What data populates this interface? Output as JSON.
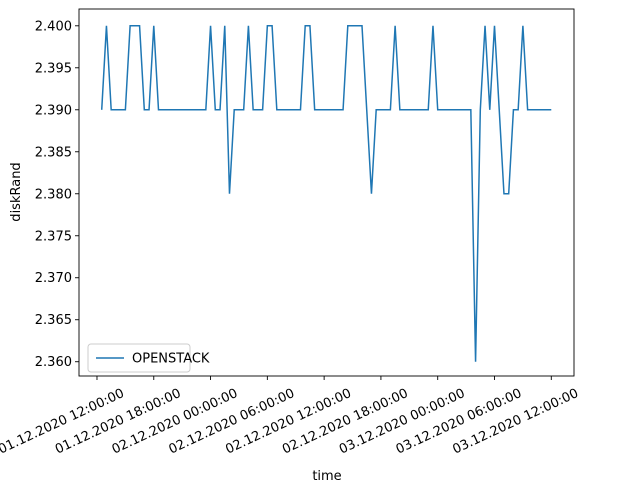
{
  "chart_data": {
    "type": "line",
    "xlabel": "time",
    "ylabel": "diskRand",
    "x": [
      "01.12.2020 12:30:00",
      "01.12.2020 13:00:00",
      "01.12.2020 13:30:00",
      "01.12.2020 15:00:00",
      "01.12.2020 15:30:00",
      "01.12.2020 16:30:00",
      "01.12.2020 17:00:00",
      "01.12.2020 17:30:00",
      "01.12.2020 18:00:00",
      "01.12.2020 18:30:00",
      "01.12.2020 23:30:00",
      "02.12.2020 00:00:00",
      "02.12.2020 00:30:00",
      "02.12.2020 01:00:00",
      "02.12.2020 01:30:00",
      "02.12.2020 02:00:00",
      "02.12.2020 02:30:00",
      "02.12.2020 03:30:00",
      "02.12.2020 04:00:00",
      "02.12.2020 04:30:00",
      "02.12.2020 05:30:00",
      "02.12.2020 06:00:00",
      "02.12.2020 06:30:00",
      "02.12.2020 07:00:00",
      "02.12.2020 09:30:00",
      "02.12.2020 10:00:00",
      "02.12.2020 10:30:00",
      "02.12.2020 11:00:00",
      "02.12.2020 14:00:00",
      "02.12.2020 14:30:00",
      "02.12.2020 16:00:00",
      "02.12.2020 16:30:00",
      "02.12.2020 17:00:00",
      "02.12.2020 17:30:00",
      "02.12.2020 19:00:00",
      "02.12.2020 19:30:00",
      "02.12.2020 20:00:00",
      "02.12.2020 23:00:00",
      "02.12.2020 23:30:00",
      "03.12.2020 00:00:00",
      "03.12.2020 03:30:00",
      "03.12.2020 04:00:00",
      "03.12.2020 04:30:00",
      "03.12.2020 05:00:00",
      "03.12.2020 05:30:00",
      "03.12.2020 06:00:00",
      "03.12.2020 06:30:00",
      "03.12.2020 07:00:00",
      "03.12.2020 07:30:00",
      "03.12.2020 08:00:00",
      "03.12.2020 08:30:00",
      "03.12.2020 09:00:00",
      "03.12.2020 09:30:00",
      "03.12.2020 12:00:00"
    ],
    "series": [
      {
        "name": "OPENSTACK",
        "color": "#1f77b4",
        "values": [
          2.39,
          2.4,
          2.39,
          2.39,
          2.4,
          2.4,
          2.39,
          2.39,
          2.4,
          2.39,
          2.39,
          2.4,
          2.39,
          2.39,
          2.4,
          2.38,
          2.39,
          2.39,
          2.4,
          2.39,
          2.39,
          2.4,
          2.4,
          2.39,
          2.39,
          2.4,
          2.4,
          2.39,
          2.39,
          2.4,
          2.4,
          2.39,
          2.38,
          2.39,
          2.39,
          2.4,
          2.39,
          2.39,
          2.4,
          2.39,
          2.39,
          2.36,
          2.39,
          2.4,
          2.39,
          2.4,
          2.39,
          2.38,
          2.38,
          2.39,
          2.39,
          2.4,
          2.39,
          2.39
        ]
      }
    ],
    "xlim": [
      "01.12.2020 10:06:00",
      "03.12.2020 14:24:00"
    ],
    "xticks": [
      "01.12.2020 12:00:00",
      "01.12.2020 18:00:00",
      "02.12.2020 00:00:00",
      "02.12.2020 06:00:00",
      "02.12.2020 12:00:00",
      "02.12.2020 18:00:00",
      "03.12.2020 00:00:00",
      "03.12.2020 06:00:00",
      "03.12.2020 12:00:00"
    ],
    "ylim": [
      2.3583,
      2.402
    ],
    "yticks": [
      {
        "value": 2.36,
        "label": "2.360"
      },
      {
        "value": 2.365,
        "label": "2.365"
      },
      {
        "value": 2.37,
        "label": "2.370"
      },
      {
        "value": 2.375,
        "label": "2.375"
      },
      {
        "value": 2.38,
        "label": "2.380"
      },
      {
        "value": 2.385,
        "label": "2.385"
      },
      {
        "value": 2.39,
        "label": "2.390"
      },
      {
        "value": 2.395,
        "label": "2.395"
      },
      {
        "value": 2.4,
        "label": "2.400"
      }
    ],
    "legend": "lower left"
  }
}
